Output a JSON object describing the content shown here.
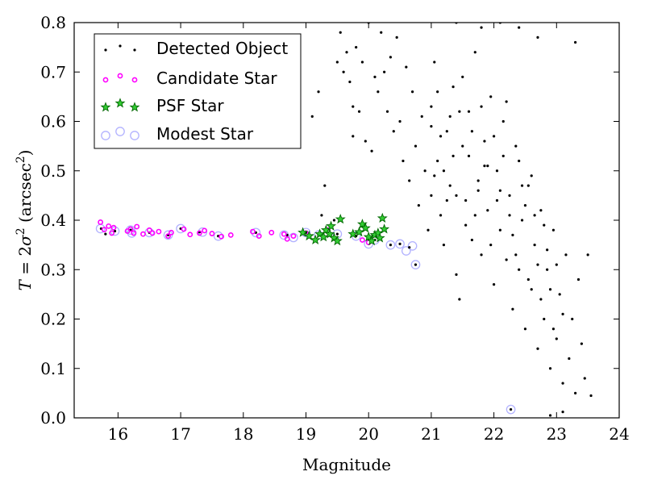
{
  "chart_data": {
    "type": "scatter",
    "title": "",
    "xlabel": "Magnitude",
    "ylabel_parts": [
      "T",
      " = 2",
      "σ",
      "2",
      " (arcsec",
      "2",
      ")"
    ],
    "xlim": [
      15.3,
      24
    ],
    "ylim": [
      0.0,
      0.8
    ],
    "xticks": [
      16,
      17,
      18,
      19,
      20,
      21,
      22,
      23,
      24
    ],
    "yticks": [
      0.0,
      0.1,
      0.2,
      0.3,
      0.4,
      0.5,
      0.6,
      0.7,
      0.8
    ],
    "grid": false,
    "legend_position": "top-left",
    "colors": {
      "detected": "#000000",
      "candidate": "#ff00ff",
      "psf_fill": "#33cc33",
      "psf_edge": "#006600",
      "modest": "#aaaaff"
    },
    "series": [
      {
        "name": "Detected Object",
        "marker": "dot",
        "points": [
          [
            15.73,
            0.383
          ],
          [
            15.8,
            0.372
          ],
          [
            15.95,
            0.378
          ],
          [
            16.2,
            0.38
          ],
          [
            16.5,
            0.375
          ],
          [
            16.8,
            0.37
          ],
          [
            17.0,
            0.383
          ],
          [
            17.3,
            0.376
          ],
          [
            17.6,
            0.368
          ],
          [
            18.2,
            0.375
          ],
          [
            18.7,
            0.37
          ],
          [
            19.0,
            0.375
          ],
          [
            19.2,
            0.37
          ],
          [
            19.5,
            0.372
          ],
          [
            19.8,
            0.368
          ],
          [
            20.1,
            0.36
          ],
          [
            20.35,
            0.35
          ],
          [
            20.5,
            0.352
          ],
          [
            20.65,
            0.345
          ],
          [
            20.75,
            0.31
          ],
          [
            22.27,
            0.017
          ],
          [
            19.1,
            0.61
          ],
          [
            19.2,
            0.66
          ],
          [
            19.3,
            0.47
          ],
          [
            19.25,
            0.41
          ],
          [
            19.45,
            0.4
          ],
          [
            19.5,
            0.72
          ],
          [
            19.55,
            0.78
          ],
          [
            19.6,
            0.7
          ],
          [
            19.65,
            0.74
          ],
          [
            19.7,
            0.68
          ],
          [
            19.75,
            0.63
          ],
          [
            19.75,
            0.57
          ],
          [
            19.8,
            0.75
          ],
          [
            19.85,
            0.62
          ],
          [
            19.9,
            0.72
          ],
          [
            19.95,
            0.56
          ],
          [
            20.0,
            0.8
          ],
          [
            20.05,
            0.54
          ],
          [
            20.1,
            0.69
          ],
          [
            20.15,
            0.66
          ],
          [
            20.2,
            0.78
          ],
          [
            20.25,
            0.7
          ],
          [
            20.3,
            0.62
          ],
          [
            20.35,
            0.73
          ],
          [
            20.4,
            0.58
          ],
          [
            20.45,
            0.77
          ],
          [
            20.5,
            0.6
          ],
          [
            20.55,
            0.52
          ],
          [
            20.6,
            0.71
          ],
          [
            20.65,
            0.48
          ],
          [
            20.7,
            0.66
          ],
          [
            20.75,
            0.55
          ],
          [
            20.8,
            0.43
          ],
          [
            20.85,
            0.61
          ],
          [
            20.9,
            0.5
          ],
          [
            20.95,
            0.38
          ],
          [
            21.0,
            0.45
          ],
          [
            21.0,
            0.63
          ],
          [
            21.05,
            0.72
          ],
          [
            21.1,
            0.52
          ],
          [
            21.15,
            0.41
          ],
          [
            21.2,
            0.35
          ],
          [
            21.25,
            0.58
          ],
          [
            21.3,
            0.47
          ],
          [
            21.35,
            0.67
          ],
          [
            21.4,
            0.29
          ],
          [
            21.45,
            0.24
          ],
          [
            21.5,
            0.55
          ],
          [
            21.55,
            0.44
          ],
          [
            21.6,
            0.62
          ],
          [
            21.65,
            0.36
          ],
          [
            21.7,
            0.74
          ],
          [
            21.75,
            0.48
          ],
          [
            21.8,
            0.33
          ],
          [
            21.85,
            0.56
          ],
          [
            21.9,
            0.42
          ],
          [
            21.95,
            0.65
          ],
          [
            22.0,
            0.27
          ],
          [
            22.05,
            0.5
          ],
          [
            22.1,
            0.38
          ],
          [
            22.15,
            0.6
          ],
          [
            22.2,
            0.32
          ],
          [
            22.25,
            0.45
          ],
          [
            22.3,
            0.22
          ],
          [
            22.35,
            0.55
          ],
          [
            22.4,
            0.3
          ],
          [
            22.45,
            0.4
          ],
          [
            22.5,
            0.18
          ],
          [
            22.55,
            0.47
          ],
          [
            22.6,
            0.26
          ],
          [
            22.65,
            0.35
          ],
          [
            22.7,
            0.14
          ],
          [
            22.75,
            0.42
          ],
          [
            22.8,
            0.2
          ],
          [
            22.85,
            0.3
          ],
          [
            22.9,
            0.1
          ],
          [
            22.95,
            0.38
          ],
          [
            23.0,
            0.16
          ],
          [
            23.05,
            0.25
          ],
          [
            23.1,
            0.07
          ],
          [
            23.15,
            0.33
          ],
          [
            23.2,
            0.12
          ],
          [
            23.25,
            0.2
          ],
          [
            23.3,
            0.05
          ],
          [
            23.35,
            0.28
          ],
          [
            23.4,
            0.15
          ],
          [
            23.45,
            0.08
          ],
          [
            23.5,
            0.33
          ],
          [
            23.55,
            0.045
          ],
          [
            22.9,
            0.005
          ],
          [
            23.1,
            0.012
          ],
          [
            23.3,
            0.76
          ],
          [
            22.4,
            0.79
          ],
          [
            22.7,
            0.77
          ],
          [
            21.4,
            0.8
          ],
          [
            21.8,
            0.79
          ],
          [
            22.1,
            0.8
          ],
          [
            21.0,
            0.59
          ],
          [
            21.1,
            0.66
          ],
          [
            21.2,
            0.5
          ],
          [
            21.3,
            0.61
          ],
          [
            21.4,
            0.45
          ],
          [
            21.5,
            0.69
          ],
          [
            21.6,
            0.53
          ],
          [
            21.7,
            0.41
          ],
          [
            21.8,
            0.63
          ],
          [
            21.9,
            0.51
          ],
          [
            22.0,
            0.57
          ],
          [
            22.1,
            0.46
          ],
          [
            22.2,
            0.64
          ],
          [
            22.3,
            0.37
          ],
          [
            22.4,
            0.52
          ],
          [
            22.5,
            0.43
          ],
          [
            22.6,
            0.49
          ],
          [
            22.7,
            0.31
          ],
          [
            22.8,
            0.39
          ],
          [
            22.9,
            0.26
          ],
          [
            23.0,
            0.31
          ],
          [
            23.1,
            0.21
          ],
          [
            21.05,
            0.49
          ],
          [
            21.15,
            0.57
          ],
          [
            21.25,
            0.44
          ],
          [
            21.35,
            0.53
          ],
          [
            21.45,
            0.62
          ],
          [
            21.55,
            0.39
          ],
          [
            21.65,
            0.58
          ],
          [
            21.75,
            0.46
          ],
          [
            21.85,
            0.51
          ],
          [
            21.95,
            0.35
          ],
          [
            22.05,
            0.44
          ],
          [
            22.15,
            0.53
          ],
          [
            22.25,
            0.41
          ],
          [
            22.35,
            0.33
          ],
          [
            22.45,
            0.47
          ],
          [
            22.55,
            0.28
          ],
          [
            22.65,
            0.41
          ],
          [
            22.75,
            0.24
          ],
          [
            22.85,
            0.34
          ],
          [
            22.95,
            0.18
          ]
        ]
      },
      {
        "name": "Candidate Star",
        "marker": "circle-small",
        "points": [
          [
            15.72,
            0.396
          ],
          [
            15.78,
            0.381
          ],
          [
            15.85,
            0.388
          ],
          [
            15.9,
            0.374
          ],
          [
            15.93,
            0.385
          ],
          [
            16.15,
            0.378
          ],
          [
            16.2,
            0.382
          ],
          [
            16.25,
            0.374
          ],
          [
            16.3,
            0.387
          ],
          [
            16.4,
            0.372
          ],
          [
            16.5,
            0.38
          ],
          [
            16.55,
            0.374
          ],
          [
            16.65,
            0.377
          ],
          [
            16.8,
            0.368
          ],
          [
            16.85,
            0.375
          ],
          [
            17.05,
            0.382
          ],
          [
            17.15,
            0.371
          ],
          [
            17.3,
            0.374
          ],
          [
            17.38,
            0.379
          ],
          [
            17.5,
            0.373
          ],
          [
            17.65,
            0.367
          ],
          [
            17.8,
            0.37
          ],
          [
            18.15,
            0.377
          ],
          [
            18.25,
            0.368
          ],
          [
            18.45,
            0.375
          ],
          [
            18.65,
            0.372
          ],
          [
            18.7,
            0.362
          ],
          [
            18.8,
            0.368
          ],
          [
            19.0,
            0.374
          ],
          [
            19.35,
            0.38
          ],
          [
            19.9,
            0.36
          ],
          [
            20.0,
            0.355
          ]
        ]
      },
      {
        "name": "PSF Star",
        "marker": "star",
        "points": [
          [
            18.95,
            0.375
          ],
          [
            19.05,
            0.368
          ],
          [
            19.15,
            0.36
          ],
          [
            19.22,
            0.372
          ],
          [
            19.28,
            0.366
          ],
          [
            19.32,
            0.38
          ],
          [
            19.38,
            0.372
          ],
          [
            19.4,
            0.388
          ],
          [
            19.45,
            0.364
          ],
          [
            19.5,
            0.358
          ],
          [
            19.55,
            0.402
          ],
          [
            19.75,
            0.372
          ],
          [
            19.85,
            0.376
          ],
          [
            19.9,
            0.392
          ],
          [
            19.95,
            0.384
          ],
          [
            20.0,
            0.366
          ],
          [
            20.05,
            0.358
          ],
          [
            20.1,
            0.37
          ],
          [
            20.15,
            0.374
          ],
          [
            20.18,
            0.364
          ],
          [
            20.22,
            0.404
          ],
          [
            20.25,
            0.382
          ]
        ]
      },
      {
        "name": "Modest Star",
        "marker": "circle-open",
        "points": [
          [
            15.72,
            0.383
          ],
          [
            15.95,
            0.378
          ],
          [
            16.2,
            0.38
          ],
          [
            16.22,
            0.374
          ],
          [
            16.5,
            0.375
          ],
          [
            16.8,
            0.37
          ],
          [
            17.0,
            0.383
          ],
          [
            17.35,
            0.376
          ],
          [
            17.6,
            0.368
          ],
          [
            18.2,
            0.375
          ],
          [
            18.65,
            0.37
          ],
          [
            18.8,
            0.365
          ],
          [
            19.0,
            0.375
          ],
          [
            19.2,
            0.37
          ],
          [
            19.5,
            0.372
          ],
          [
            19.8,
            0.368
          ],
          [
            20.0,
            0.352
          ],
          [
            20.1,
            0.36
          ],
          [
            20.35,
            0.35
          ],
          [
            20.5,
            0.352
          ],
          [
            20.6,
            0.338
          ],
          [
            20.7,
            0.348
          ],
          [
            20.75,
            0.31
          ],
          [
            22.27,
            0.017
          ]
        ]
      }
    ]
  }
}
